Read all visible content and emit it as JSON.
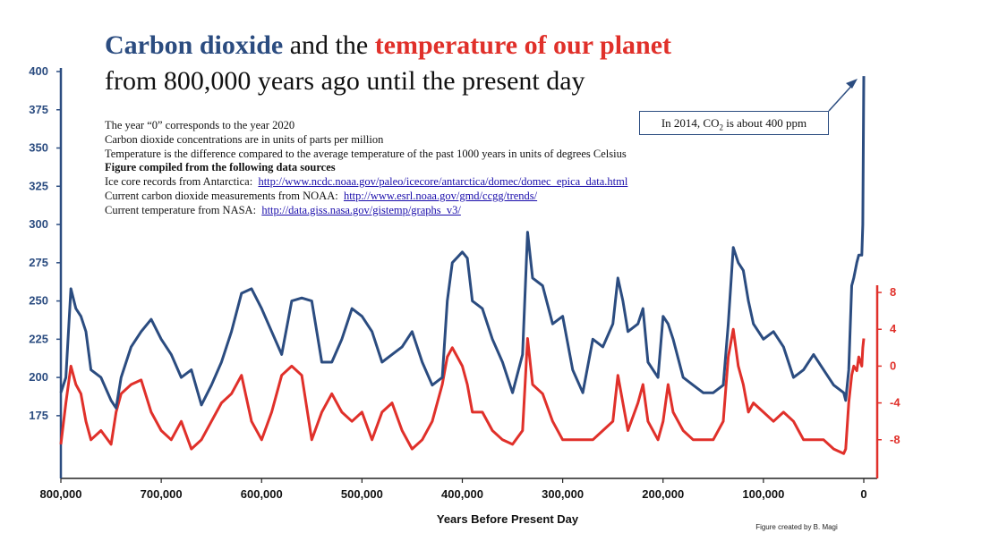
{
  "chart_data": {
    "type": "line",
    "title": {
      "parts": [
        {
          "text": "Carbon dioxide",
          "color": "#2b4c80"
        },
        {
          "text": " and the ",
          "color": "#111111"
        },
        {
          "text": "temperature of our planet",
          "color": "#e0302a"
        }
      ],
      "line2": "from 800,000 years ago until the present day"
    },
    "notes": [
      "The year “0” corresponds to the year 2020",
      "Carbon dioxide concentrations are in units of parts per million",
      "Temperature is the difference compared to the average temperature of the past 1000 years in units of degrees Celsius"
    ],
    "sources_heading": "Figure compiled from the following data sources",
    "sources": [
      {
        "label": "Ice core records from Antarctica:",
        "url": "http://www.ncdc.noaa.gov/paleo/icecore/antarctica/domec/domec_epica_data.html"
      },
      {
        "label": "Current carbon dioxide measurements from NOAA:",
        "url": "http://www.esrl.noaa.gov/gmd/ccgg/trends/"
      },
      {
        "label": "Current temperature from NASA:",
        "url": "http://data.giss.nasa.gov/gistemp/graphs_v3/"
      }
    ],
    "annotation": {
      "before": "In 2014, CO",
      "sub": "2",
      "after": " is about 400 ppm"
    },
    "xlabel": "Years Before Present Day",
    "credit": "Figure created by B. Magi",
    "x": [
      800000,
      795000,
      790000,
      785000,
      780000,
      775000,
      770000,
      760000,
      750000,
      745000,
      740000,
      730000,
      720000,
      710000,
      700000,
      690000,
      680000,
      670000,
      660000,
      650000,
      640000,
      630000,
      620000,
      610000,
      600000,
      590000,
      580000,
      570000,
      560000,
      550000,
      540000,
      530000,
      520000,
      510000,
      500000,
      490000,
      480000,
      470000,
      460000,
      450000,
      440000,
      430000,
      420000,
      415000,
      410000,
      400000,
      395000,
      390000,
      380000,
      370000,
      360000,
      350000,
      340000,
      335000,
      330000,
      320000,
      310000,
      300000,
      290000,
      280000,
      270000,
      260000,
      250000,
      245000,
      240000,
      235000,
      225000,
      220000,
      215000,
      205000,
      200000,
      195000,
      190000,
      180000,
      170000,
      160000,
      150000,
      140000,
      135000,
      130000,
      125000,
      120000,
      115000,
      110000,
      100000,
      90000,
      80000,
      70000,
      60000,
      50000,
      40000,
      30000,
      20000,
      18000,
      15000,
      12000,
      10000,
      7000,
      5000,
      2000,
      1000,
      0
    ],
    "xlim": [
      800000,
      0
    ],
    "xticks": [
      {
        "value": 800000,
        "label": "800,000"
      },
      {
        "value": 700000,
        "label": "700,000"
      },
      {
        "value": 600000,
        "label": "600,000"
      },
      {
        "value": 500000,
        "label": "500,000"
      },
      {
        "value": 400000,
        "label": "400,000"
      },
      {
        "value": 300000,
        "label": "300,000"
      },
      {
        "value": 200000,
        "label": "200,000"
      },
      {
        "value": 100000,
        "label": "100,000"
      },
      0
    ],
    "ylim": [
      134,
      400
    ],
    "yticks": [
      175,
      200,
      225,
      250,
      275,
      300,
      325,
      350,
      375,
      400
    ],
    "y2lim": [
      -12.2,
      32
    ],
    "y2ticks": [
      -8,
      -4,
      0,
      4,
      8
    ],
    "series": [
      {
        "name": "Carbon dioxide",
        "color": "#2b4c80",
        "values": [
          190,
          200,
          258,
          245,
          240,
          230,
          205,
          200,
          185,
          180,
          200,
          220,
          230,
          238,
          225,
          215,
          200,
          205,
          182,
          195,
          210,
          230,
          255,
          258,
          245,
          230,
          215,
          250,
          252,
          250,
          210,
          210,
          225,
          245,
          240,
          230,
          210,
          215,
          220,
          230,
          210,
          195,
          200,
          250,
          275,
          282,
          278,
          250,
          245,
          225,
          210,
          190,
          215,
          295,
          265,
          260,
          235,
          240,
          205,
          190,
          225,
          220,
          235,
          265,
          250,
          230,
          235,
          245,
          210,
          200,
          240,
          235,
          225,
          200,
          195,
          190,
          190,
          195,
          235,
          285,
          275,
          270,
          250,
          235,
          225,
          230,
          220,
          200,
          205,
          215,
          205,
          195,
          190,
          185,
          205,
          260,
          265,
          275,
          280,
          280,
          300,
          397
        ]
      },
      {
        "name": "Temperature",
        "color": "#e0302a",
        "axis": "y2",
        "values": [
          -8.5,
          -4,
          0,
          -2,
          -3,
          -6,
          -8,
          -7,
          -8.5,
          -5,
          -3,
          -2,
          -1.5,
          -5,
          -7,
          -8,
          -6,
          -9,
          -8,
          -6,
          -4,
          -3,
          -1,
          -6,
          -8,
          -5,
          -1,
          0,
          -1,
          -8,
          -5,
          -3,
          -5,
          -6,
          -5,
          -8,
          -5,
          -4,
          -7,
          -9,
          -8,
          -6,
          -2,
          1,
          2,
          0,
          -2,
          -5,
          -5,
          -7,
          -8,
          -8.5,
          -7,
          3,
          -2,
          -3,
          -6,
          -8,
          -8,
          -8,
          -8,
          -7,
          -6,
          -1,
          -4,
          -7,
          -4,
          -2,
          -6,
          -8,
          -6,
          -2,
          -5,
          -7,
          -8,
          -8,
          -8,
          -6,
          1,
          4,
          0,
          -2,
          -5,
          -4,
          -5,
          -6,
          -5,
          -6,
          -8,
          -8,
          -8,
          -9,
          -9.5,
          -9,
          -4,
          -1,
          0,
          -0.5,
          1,
          0,
          2,
          3
        ]
      }
    ]
  }
}
